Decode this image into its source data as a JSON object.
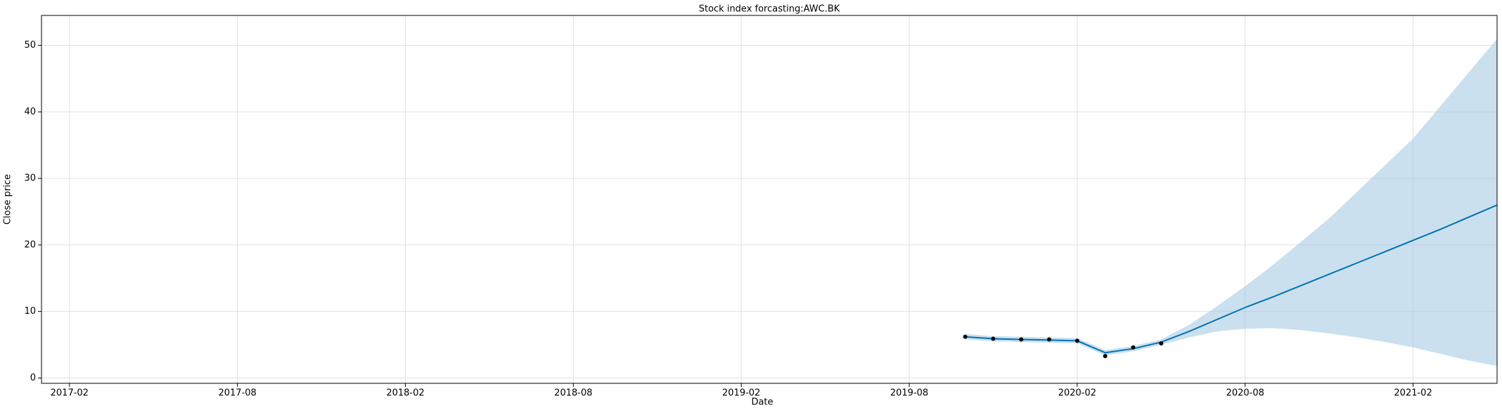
{
  "chart_data": {
    "type": "forecast",
    "title": "Stock index forcasting:AWC.BK",
    "x_label": "Date",
    "y_label": "Close price",
    "grid": true,
    "xlim": [
      "2017-01",
      "2021-05"
    ],
    "xticks": [
      "2017-02",
      "2017-08",
      "2018-02",
      "2018-08",
      "2019-02",
      "2019-08",
      "2020-02",
      "2020-08",
      "2021-02"
    ],
    "ylim": [
      -0.8,
      54.5
    ],
    "yticks": [
      0,
      10,
      20,
      30,
      40,
      50
    ],
    "forecast": {
      "color": "#0072b2",
      "band_color": "#a6cbe3",
      "x": [
        "2019-10",
        "2019-11",
        "2019-12",
        "2020-01",
        "2020-02",
        "2020-03",
        "2020-04",
        "2020-05",
        "2020-06",
        "2020-07",
        "2020-08",
        "2020-09",
        "2020-10",
        "2020-11",
        "2020-12",
        "2021-01",
        "2021-02",
        "2021-03",
        "2021-04",
        "2021-05"
      ],
      "values": [
        6.2,
        5.9,
        5.8,
        5.7,
        5.6,
        3.8,
        4.4,
        5.4,
        7.0,
        8.8,
        10.6,
        12.2,
        13.9,
        15.6,
        17.3,
        19.0,
        20.7,
        22.4,
        24.2,
        26.0
      ],
      "upper": [
        6.6,
        6.3,
        6.2,
        6.1,
        6.0,
        4.2,
        4.8,
        5.8,
        8.0,
        10.8,
        13.8,
        17.0,
        20.5,
        24.0,
        28.0,
        32.0,
        36.0,
        41.0,
        46.0,
        51.0
      ],
      "lower": [
        5.8,
        5.5,
        5.4,
        5.3,
        5.2,
        3.4,
        4.0,
        5.0,
        6.1,
        7.0,
        7.4,
        7.5,
        7.2,
        6.7,
        6.1,
        5.4,
        4.6,
        3.6,
        2.6,
        1.8
      ]
    },
    "observed": {
      "color": "#000000",
      "x": [
        "2019-10",
        "2019-11",
        "2019-12",
        "2020-01",
        "2020-02",
        "2020-03",
        "2020-04",
        "2020-05"
      ],
      "values": [
        6.2,
        5.9,
        5.8,
        5.8,
        5.6,
        3.3,
        4.6,
        5.2
      ]
    }
  }
}
